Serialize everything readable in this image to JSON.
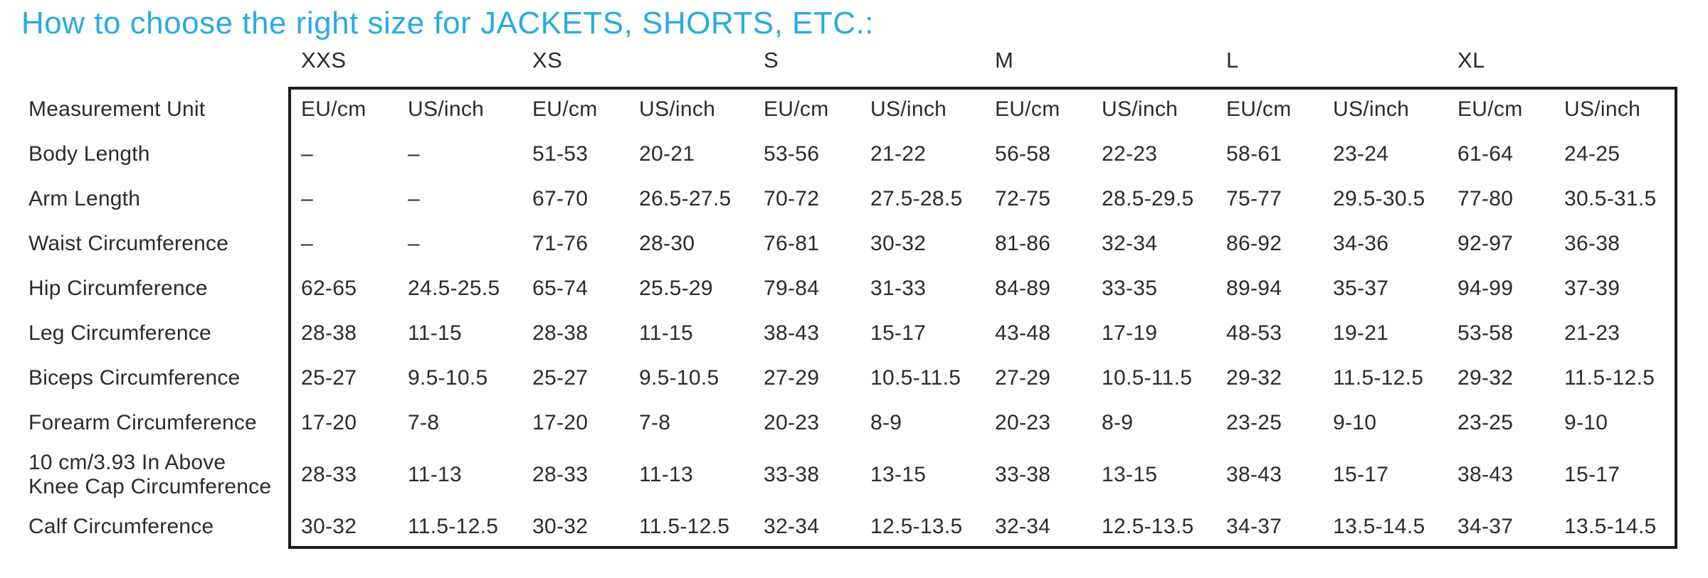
{
  "title": "How to choose the right size for JACKETS, SHORTS, ETC.:",
  "colors": {
    "accent": "#29abe2",
    "text": "#2b2b2b",
    "table_border": "#1b1b1b"
  },
  "table": {
    "size_groups": [
      "XXS",
      "XS",
      "S",
      "M",
      "L",
      "XL"
    ],
    "unit_header_label": "Measurement Unit",
    "unit_headers": [
      "EU/cm",
      "US/inch"
    ],
    "empty_value": "–",
    "rows": [
      {
        "label": "Body Length",
        "values": [
          "–",
          "–",
          "51-53",
          "20-21",
          "53-56",
          "21-22",
          "56-58",
          "22-23",
          "58-61",
          "23-24",
          "61-64",
          "24-25"
        ]
      },
      {
        "label": "Arm Length",
        "values": [
          "–",
          "–",
          "67-70",
          "26.5-27.5",
          "70-72",
          "27.5-28.5",
          "72-75",
          "28.5-29.5",
          "75-77",
          "29.5-30.5",
          "77-80",
          "30.5-31.5"
        ]
      },
      {
        "label": "Waist Circumference",
        "values": [
          "–",
          "–",
          "71-76",
          "28-30",
          "76-81",
          "30-32",
          "81-86",
          "32-34",
          "86-92",
          "34-36",
          "92-97",
          "36-38"
        ]
      },
      {
        "label": "Hip Circumference",
        "values": [
          "62-65",
          "24.5-25.5",
          "65-74",
          "25.5-29",
          "79-84",
          "31-33",
          "84-89",
          "33-35",
          "89-94",
          "35-37",
          "94-99",
          "37-39"
        ]
      },
      {
        "label": "Leg Circumference",
        "values": [
          "28-38",
          "11-15",
          "28-38",
          "11-15",
          "38-43",
          "15-17",
          "43-48",
          "17-19",
          "48-53",
          "19-21",
          "53-58",
          "21-23"
        ]
      },
      {
        "label": "Biceps Circumference",
        "values": [
          "25-27",
          "9.5-10.5",
          "25-27",
          "9.5-10.5",
          "27-29",
          "10.5-11.5",
          "27-29",
          "10.5-11.5",
          "29-32",
          "11.5-12.5",
          "29-32",
          "11.5-12.5"
        ]
      },
      {
        "label": "Forearm Circumference",
        "values": [
          "17-20",
          "7-8",
          "17-20",
          "7-8",
          "20-23",
          "8-9",
          "20-23",
          "8-9",
          "23-25",
          "9-10",
          "23-25",
          "9-10"
        ]
      },
      {
        "label": "10 cm/3.93 In Above Knee Cap Circumference",
        "values": [
          "28-33",
          "11-13",
          "28-33",
          "11-13",
          "33-38",
          "13-15",
          "33-38",
          "13-15",
          "38-43",
          "15-17",
          "38-43",
          "15-17"
        ]
      },
      {
        "label": "Calf Circumference",
        "values": [
          "30-32",
          "11.5-12.5",
          "30-32",
          "11.5-12.5",
          "32-34",
          "12.5-13.5",
          "32-34",
          "12.5-13.5",
          "34-37",
          "13.5-14.5",
          "34-37",
          "13.5-14.5"
        ]
      }
    ]
  }
}
